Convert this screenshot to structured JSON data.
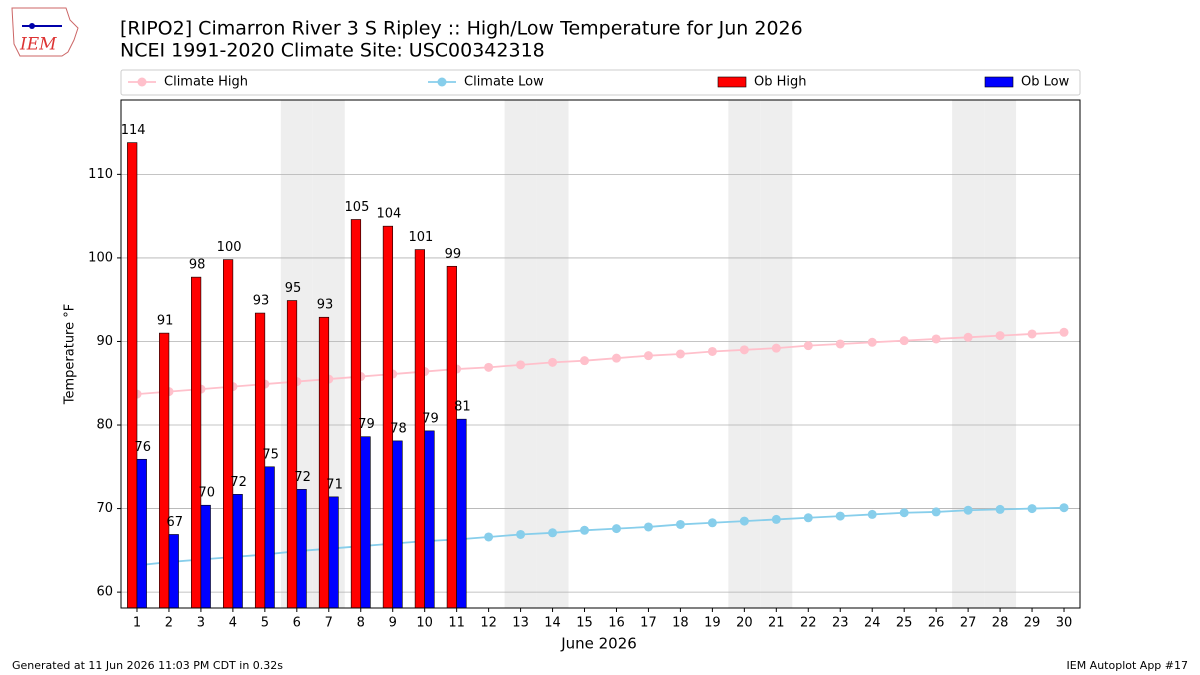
{
  "logo_text": "IEM",
  "chart_data": {
    "type": "bar",
    "title": "[RIPO2] Cimarron River 3 S Ripley :: High/Low Temperature for Jun 2026",
    "subtitle": "NCEI 1991-2020 Climate Site: USC00342318",
    "xlabel": "June 2026",
    "ylabel": "Temperature °F",
    "x": [
      1,
      2,
      3,
      4,
      5,
      6,
      7,
      8,
      9,
      10,
      11,
      12,
      13,
      14,
      15,
      16,
      17,
      18,
      19,
      20,
      21,
      22,
      23,
      24,
      25,
      26,
      27,
      28,
      29,
      30
    ],
    "xlim": [
      0.5,
      30.5
    ],
    "xticks": [
      1,
      2,
      3,
      4,
      5,
      6,
      7,
      8,
      9,
      10,
      11,
      12,
      13,
      14,
      15,
      16,
      17,
      18,
      19,
      20,
      21,
      22,
      23,
      24,
      25,
      26,
      27,
      28,
      29,
      30
    ],
    "ylim": [
      58.1,
      118.9
    ],
    "yticks": [
      60,
      70,
      80,
      90,
      100,
      110
    ],
    "grid": true,
    "shaded_days": [
      6,
      7,
      13,
      14,
      20,
      21,
      27,
      28
    ],
    "series": [
      {
        "name": "Climate High",
        "kind": "line",
        "color": "#ffc0cb",
        "values": [
          83.7,
          84.0,
          84.3,
          84.6,
          84.9,
          85.2,
          85.5,
          85.8,
          86.1,
          86.4,
          86.7,
          86.9,
          87.2,
          87.5,
          87.7,
          88.0,
          88.3,
          88.5,
          88.8,
          89.0,
          89.2,
          89.5,
          89.7,
          89.9,
          90.1,
          90.3,
          90.5,
          90.7,
          90.9,
          91.1
        ]
      },
      {
        "name": "Climate Low",
        "kind": "line",
        "color": "#87ceeb",
        "values": [
          63.2,
          63.6,
          63.9,
          64.2,
          64.5,
          64.9,
          65.2,
          65.5,
          65.8,
          66.1,
          66.3,
          66.6,
          66.9,
          67.1,
          67.4,
          67.6,
          67.8,
          68.1,
          68.3,
          68.5,
          68.7,
          68.9,
          69.1,
          69.3,
          69.5,
          69.6,
          69.8,
          69.9,
          70.0,
          70.1
        ]
      },
      {
        "name": "Ob High",
        "kind": "bar",
        "color": "#ff0000",
        "offset": -0.15,
        "values": [
          113.8,
          91.0,
          97.7,
          99.8,
          93.4,
          94.9,
          92.9,
          104.6,
          103.8,
          101.0,
          99.0,
          null,
          null,
          null,
          null,
          null,
          null,
          null,
          null,
          null,
          null,
          null,
          null,
          null,
          null,
          null,
          null,
          null,
          null,
          null
        ],
        "value_labels": [
          "114",
          "91",
          "98",
          "100",
          "93",
          "95",
          "93",
          "105",
          "104",
          "101",
          "99",
          null,
          null,
          null,
          null,
          null,
          null,
          null,
          null,
          null,
          null,
          null,
          null,
          null,
          null,
          null,
          null,
          null,
          null,
          null
        ]
      },
      {
        "name": "Ob Low",
        "kind": "bar",
        "color": "#0000ff",
        "offset": 0.15,
        "values": [
          75.9,
          66.9,
          70.4,
          71.7,
          75.0,
          72.3,
          71.4,
          78.6,
          78.1,
          79.3,
          80.7,
          null,
          null,
          null,
          null,
          null,
          null,
          null,
          null,
          null,
          null,
          null,
          null,
          null,
          null,
          null,
          null,
          null,
          null,
          null
        ],
        "value_labels": [
          "76",
          "67",
          "70",
          "72",
          "75",
          "72",
          "71",
          "79",
          "78",
          "79",
          "81",
          null,
          null,
          null,
          null,
          null,
          null,
          null,
          null,
          null,
          null,
          null,
          null,
          null,
          null,
          null,
          null,
          null,
          null,
          null
        ]
      }
    ],
    "footer_left": "Generated at 11 Jun 2026 11:03 PM CDT in 0.32s",
    "footer_right": "IEM Autoplot App #17"
  }
}
